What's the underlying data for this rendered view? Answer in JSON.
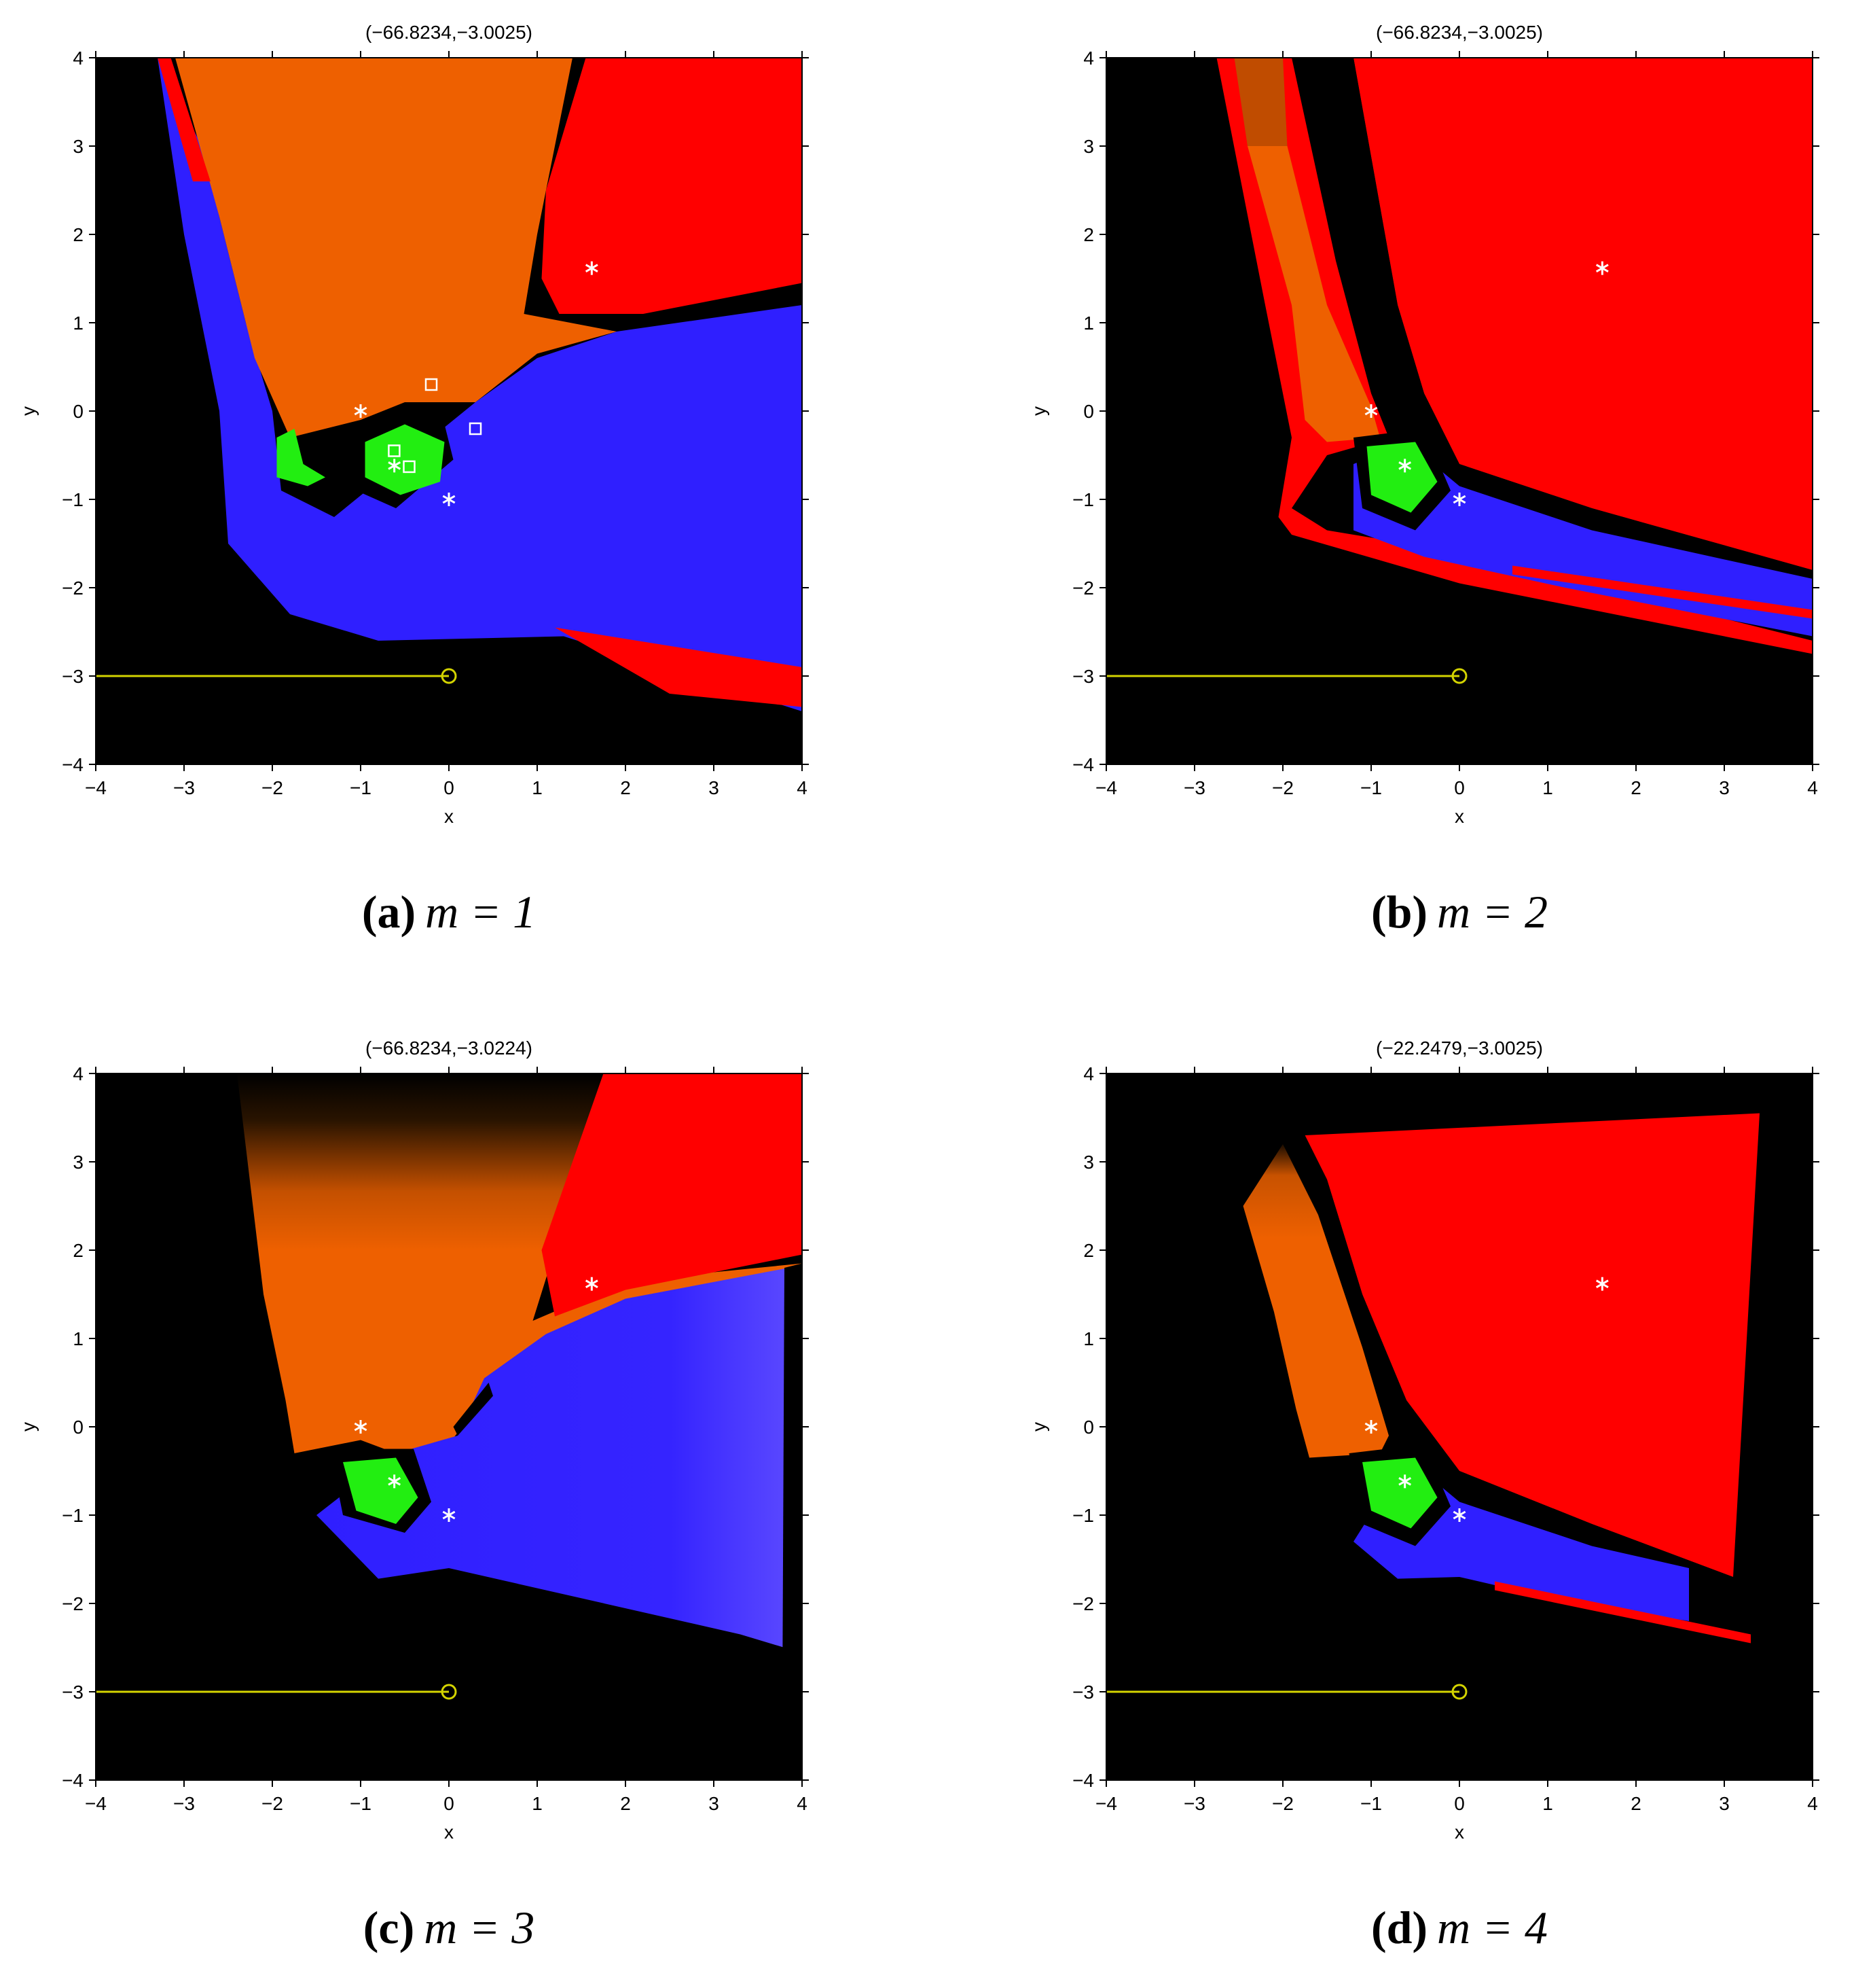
{
  "chart_data": [
    {
      "type": "basin",
      "title": "(−66.8234,−3.0025)",
      "caption_label": "(a)",
      "caption": "m = 1",
      "xlabel": "x",
      "ylabel": "y",
      "xlim": [
        -4,
        4
      ],
      "ylim": [
        -4,
        4
      ],
      "xticks": [
        {
          "value": -4,
          "label": "−4"
        },
        {
          "value": -3,
          "label": "−3"
        },
        {
          "value": -2,
          "label": "−2"
        },
        {
          "value": -1,
          "label": "−1"
        },
        0,
        1,
        2,
        3,
        4
      ],
      "yticks": [
        {
          "value": -4,
          "label": "−4"
        },
        {
          "value": -3,
          "label": "−3"
        },
        {
          "value": -2,
          "label": "−2"
        },
        {
          "value": -1,
          "label": "−1"
        },
        0,
        1,
        2,
        3,
        4
      ],
      "stars": {
        "x": [
          -1,
          -0.618,
          0,
          1.618
        ],
        "y": [
          0,
          -0.618,
          -1,
          1.618
        ],
        "color": "#ffffff"
      },
      "squares": {
        "x": [
          -0.2,
          0.3,
          -0.62,
          -0.45
        ],
        "y": [
          0.3,
          -0.2,
          -0.45,
          -0.63
        ],
        "color": "#ffffff"
      },
      "path": {
        "x": [
          -4,
          0
        ],
        "y": [
          -3,
          -3
        ],
        "color": "#d4d400"
      }
    },
    {
      "type": "basin",
      "title": "(−66.8234,−3.0025)",
      "caption_label": "(b)",
      "caption": "m = 2",
      "xlabel": "x",
      "ylabel": "y",
      "xlim": [
        -4,
        4
      ],
      "ylim": [
        -4,
        4
      ],
      "xticks": [
        {
          "value": -4,
          "label": "−4"
        },
        {
          "value": -3,
          "label": "−3"
        },
        {
          "value": -2,
          "label": "−2"
        },
        {
          "value": -1,
          "label": "−1"
        },
        0,
        1,
        2,
        3,
        4
      ],
      "yticks": [
        {
          "value": -4,
          "label": "−4"
        },
        {
          "value": -3,
          "label": "−3"
        },
        {
          "value": -2,
          "label": "−2"
        },
        {
          "value": -1,
          "label": "−1"
        },
        0,
        1,
        2,
        3,
        4
      ],
      "stars": {
        "x": [
          -1,
          -0.618,
          0,
          1.618
        ],
        "y": [
          0,
          -0.618,
          -1,
          1.618
        ],
        "color": "#ffffff"
      },
      "path": {
        "x": [
          -4,
          0
        ],
        "y": [
          -3,
          -3
        ],
        "color": "#d4d400"
      }
    },
    {
      "type": "basin",
      "title": "(−66.8234,−3.0224)",
      "caption_label": "(c)",
      "caption": "m = 3",
      "xlabel": "x",
      "ylabel": "y",
      "xlim": [
        -4,
        4
      ],
      "ylim": [
        -4,
        4
      ],
      "xticks": [
        {
          "value": -4,
          "label": "−4"
        },
        {
          "value": -3,
          "label": "−3"
        },
        {
          "value": -2,
          "label": "−2"
        },
        {
          "value": -1,
          "label": "−1"
        },
        0,
        1,
        2,
        3,
        4
      ],
      "yticks": [
        {
          "value": -4,
          "label": "−4"
        },
        {
          "value": -3,
          "label": "−3"
        },
        {
          "value": -2,
          "label": "−2"
        },
        {
          "value": -1,
          "label": "−1"
        },
        0,
        1,
        2,
        3,
        4
      ],
      "stars": {
        "x": [
          -1,
          -0.618,
          0,
          1.618
        ],
        "y": [
          0,
          -0.618,
          -1,
          1.618
        ],
        "color": "#ffffff"
      },
      "path": {
        "x": [
          -4,
          0
        ],
        "y": [
          -3,
          -3
        ],
        "color": "#d4d400"
      }
    },
    {
      "type": "basin",
      "title": "(−22.2479,−3.0025)",
      "caption_label": "(d)",
      "caption": "m = 4",
      "xlabel": "x",
      "ylabel": "y",
      "xlim": [
        -4,
        4
      ],
      "ylim": [
        -4,
        4
      ],
      "xticks": [
        {
          "value": -4,
          "label": "−4"
        },
        {
          "value": -3,
          "label": "−3"
        },
        {
          "value": -2,
          "label": "−2"
        },
        {
          "value": -1,
          "label": "−1"
        },
        0,
        1,
        2,
        3,
        4
      ],
      "yticks": [
        {
          "value": -4,
          "label": "−4"
        },
        {
          "value": -3,
          "label": "−3"
        },
        {
          "value": -2,
          "label": "−2"
        },
        {
          "value": -1,
          "label": "−1"
        },
        0,
        1,
        2,
        3,
        4
      ],
      "stars": {
        "x": [
          -1,
          -0.618,
          0,
          1.618
        ],
        "y": [
          0,
          -0.618,
          -1,
          1.618
        ],
        "color": "#ffffff"
      },
      "path": {
        "x": [
          -4,
          0
        ],
        "y": [
          -3,
          -3
        ],
        "color": "#d4d400"
      }
    }
  ]
}
